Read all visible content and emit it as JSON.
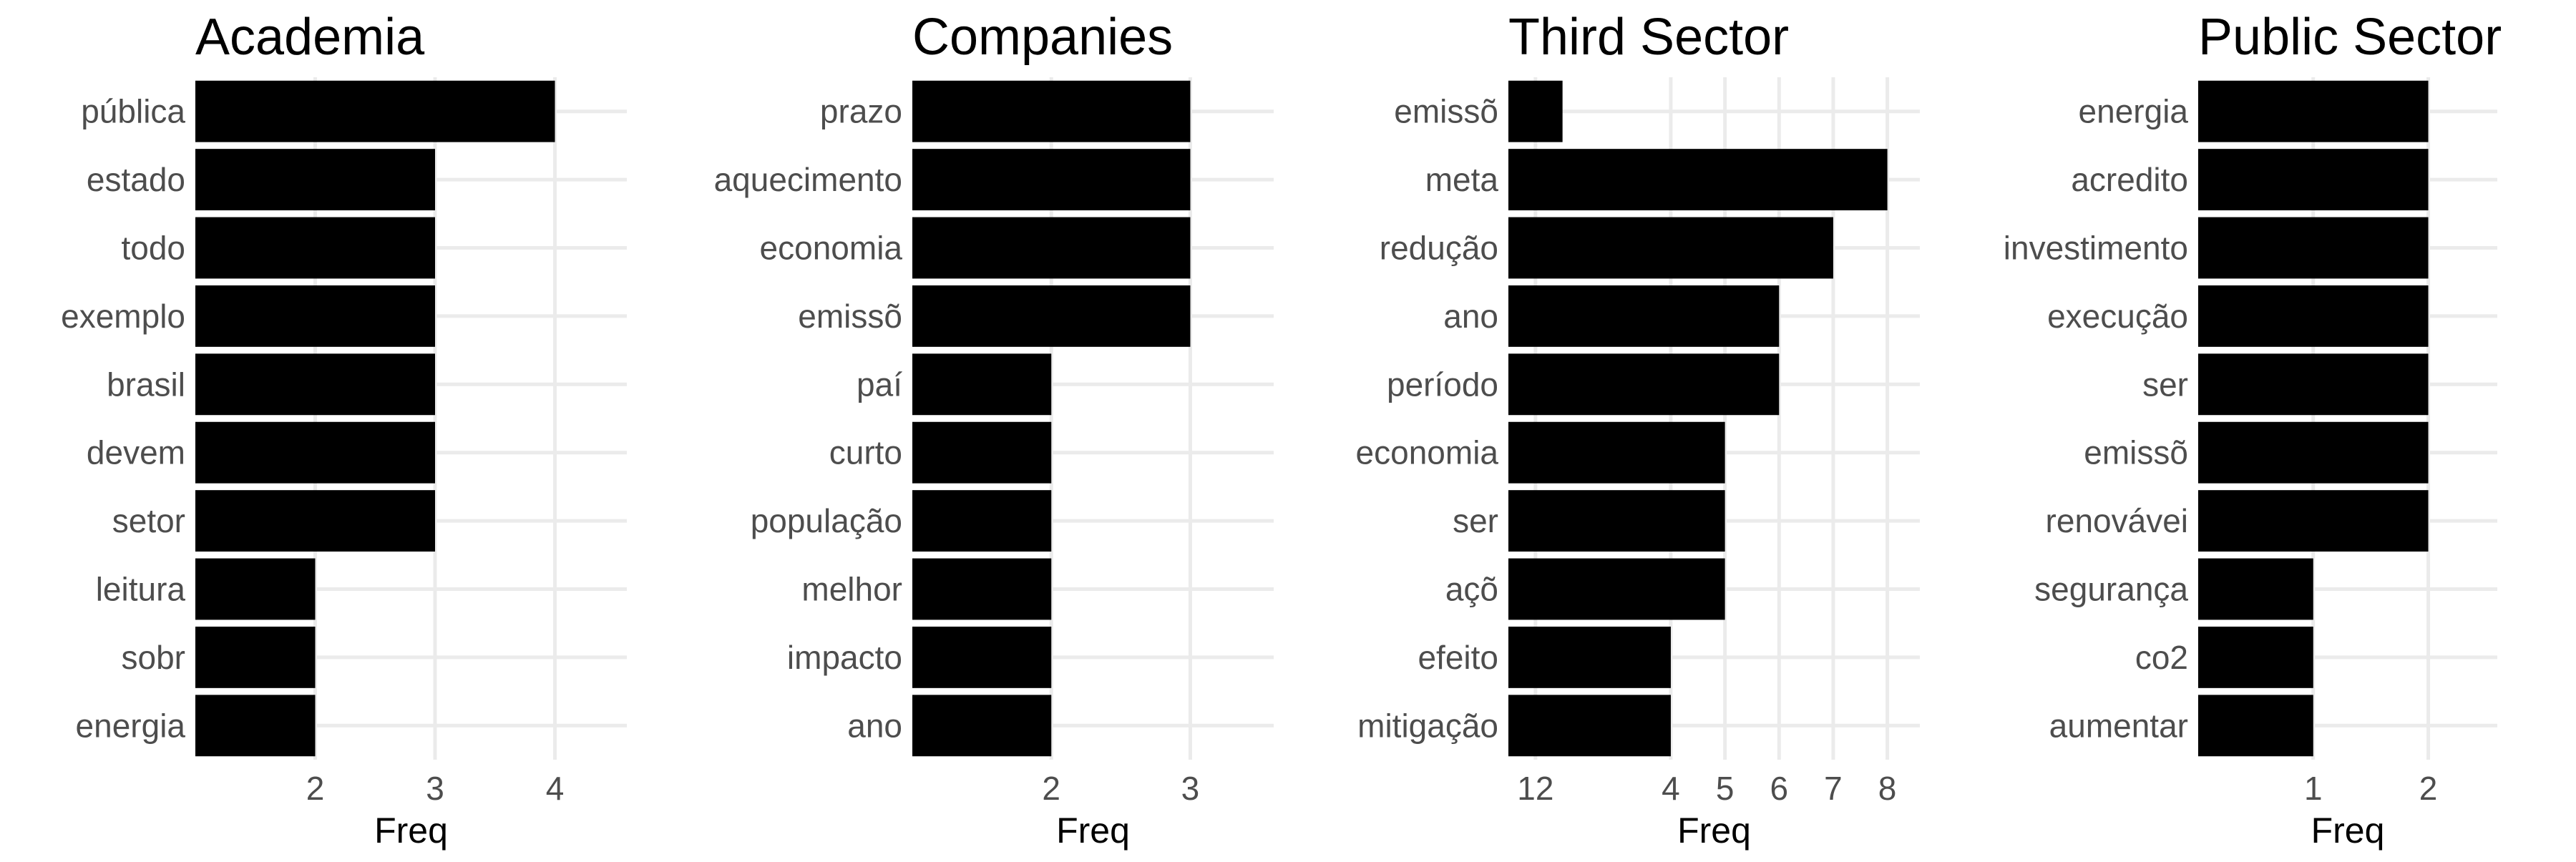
{
  "chart_data": [
    {
      "type": "bar",
      "orientation": "horizontal",
      "title": "Academia",
      "xlabel": "Freq",
      "ylabel": "",
      "categories": [
        "pública",
        "estado",
        "todo",
        "exemplo",
        "brasil",
        "devem",
        "setor",
        "leitura",
        "sobr",
        "energia"
      ],
      "values": [
        4,
        3,
        3,
        3,
        3,
        3,
        3,
        2,
        2,
        2
      ],
      "xticks": [
        "2",
        "3",
        "4"
      ],
      "xlim": [
        1,
        4.6
      ],
      "grid": true
    },
    {
      "type": "bar",
      "orientation": "horizontal",
      "title": "Companies",
      "xlabel": "Freq",
      "ylabel": "",
      "categories": [
        "prazo",
        "aquecimento",
        "economia",
        "emissõ",
        "paí",
        "curto",
        "população",
        "melhor",
        "impacto",
        "ano"
      ],
      "values": [
        3,
        3,
        3,
        3,
        2,
        2,
        2,
        2,
        2,
        2
      ],
      "xticks": [
        "2",
        "3"
      ],
      "xlim": [
        1,
        3.6
      ],
      "grid": true
    },
    {
      "type": "bar",
      "orientation": "horizontal",
      "title": "Third Sector",
      "xlabel": "Freq",
      "ylabel": "",
      "categories": [
        "emissõ",
        "meta",
        "redução",
        "ano",
        "período",
        "economia",
        "ser",
        "açõ",
        "efeito",
        "mitigação"
      ],
      "values": [
        2,
        8,
        7,
        6,
        6,
        5,
        5,
        5,
        4,
        4
      ],
      "xticks": [
        "12",
        "4",
        "5",
        "6",
        "7",
        "8"
      ],
      "xlim": [
        1,
        8.6
      ],
      "grid": true
    },
    {
      "type": "bar",
      "orientation": "horizontal",
      "title": "Public Sector",
      "xlabel": "Freq",
      "ylabel": "",
      "categories": [
        "energia",
        "acredito",
        "investimento",
        "execução",
        "ser",
        "emissõ",
        "renovávei",
        "segurança",
        "co2",
        "aumentar"
      ],
      "values": [
        2,
        2,
        2,
        2,
        2,
        2,
        2,
        1,
        1,
        1
      ],
      "xticks": [
        "1",
        "2"
      ],
      "xlim": [
        0,
        2.6
      ],
      "grid": true
    }
  ],
  "colors": {
    "bar": "#000000",
    "grid": "#ebebeb",
    "tick_text": "#4d4d4d",
    "title_text": "#000000",
    "background": "#ffffff"
  }
}
